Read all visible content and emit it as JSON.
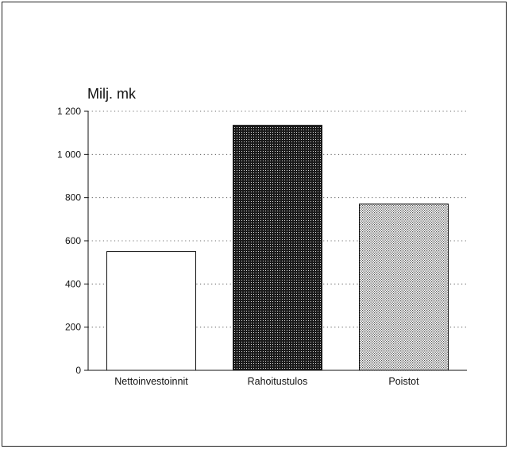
{
  "chart_data": {
    "type": "bar",
    "unit_label": "Milj. mk",
    "categories": [
      "Nettoinvestoinnit",
      "Rahoitustulos",
      "Poistot"
    ],
    "values": [
      550,
      1135,
      770
    ],
    "ylim": [
      0,
      1200
    ],
    "yticks": [
      0,
      200,
      400,
      600,
      800,
      1000,
      1200
    ],
    "ytick_labels": [
      "0",
      "200",
      "400",
      "600",
      "800",
      "1 000",
      "1 200"
    ],
    "grid": true,
    "grid_style": "dotted",
    "bar_fills": [
      "white",
      "dark-dotted",
      "light-dotted"
    ]
  }
}
